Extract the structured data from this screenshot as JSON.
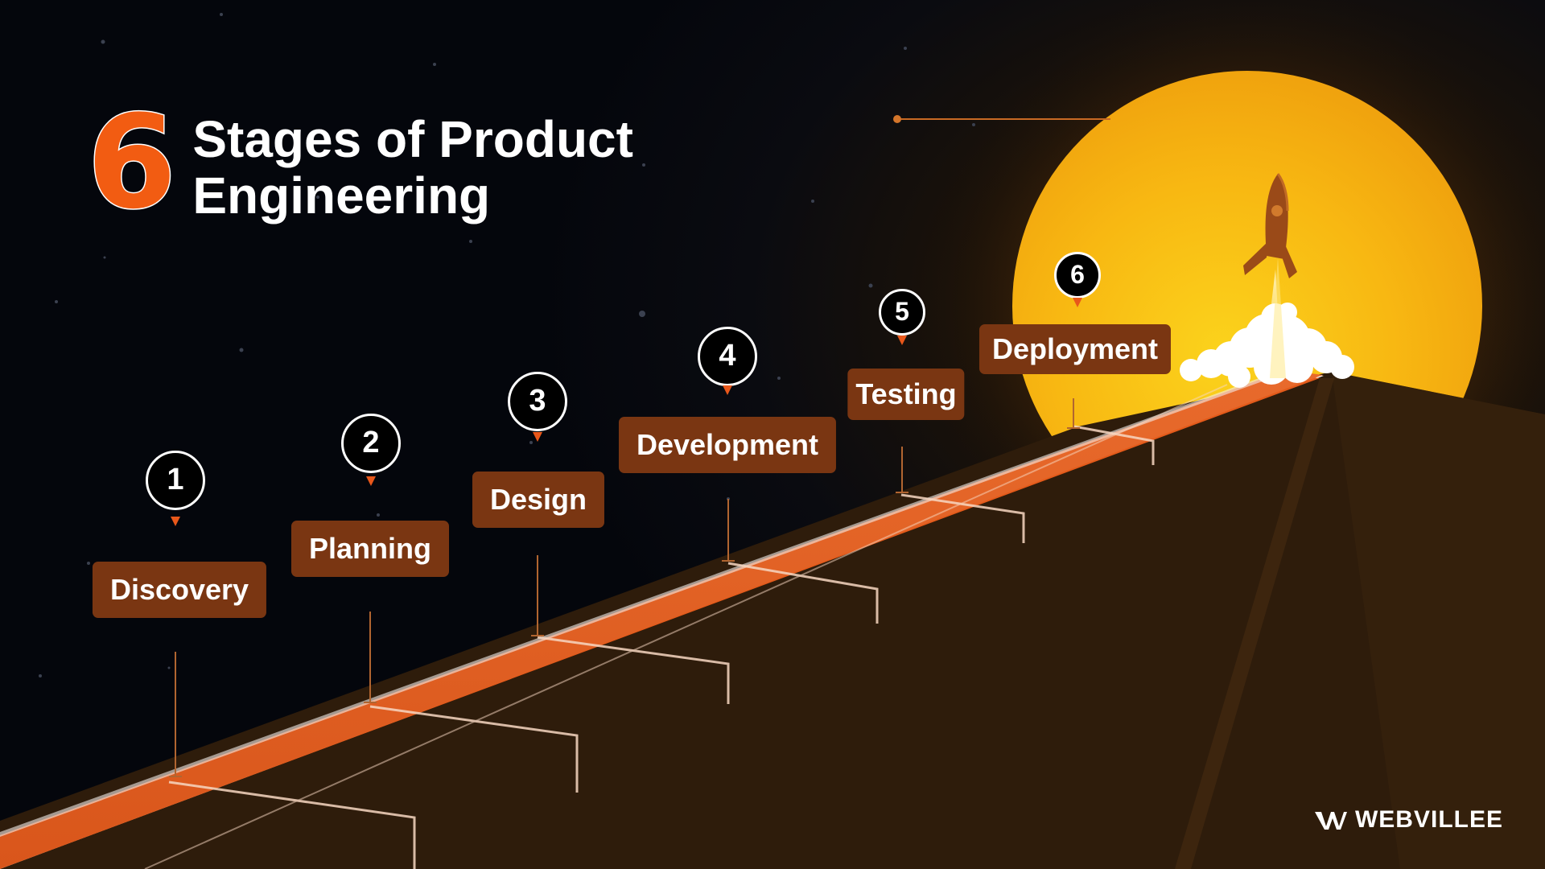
{
  "title": {
    "number": "6",
    "line1": "Stages of Product",
    "line2": "Engineering"
  },
  "stages": [
    {
      "num": "1",
      "label": "Discovery"
    },
    {
      "num": "2",
      "label": "Planning"
    },
    {
      "num": "3",
      "label": "Design"
    },
    {
      "num": "4",
      "label": "Development"
    },
    {
      "num": "5",
      "label": "Testing"
    },
    {
      "num": "6",
      "label": "Deployment"
    }
  ],
  "brand": {
    "name": "WEBVILLEE",
    "icon": "webvillee-logo-icon"
  },
  "icons": {
    "rocket": "rocket-icon"
  },
  "colors": {
    "accent": "#f25c12",
    "label_bg": "#7a3612",
    "sun": "#f7ae12",
    "background": "#05070d"
  }
}
